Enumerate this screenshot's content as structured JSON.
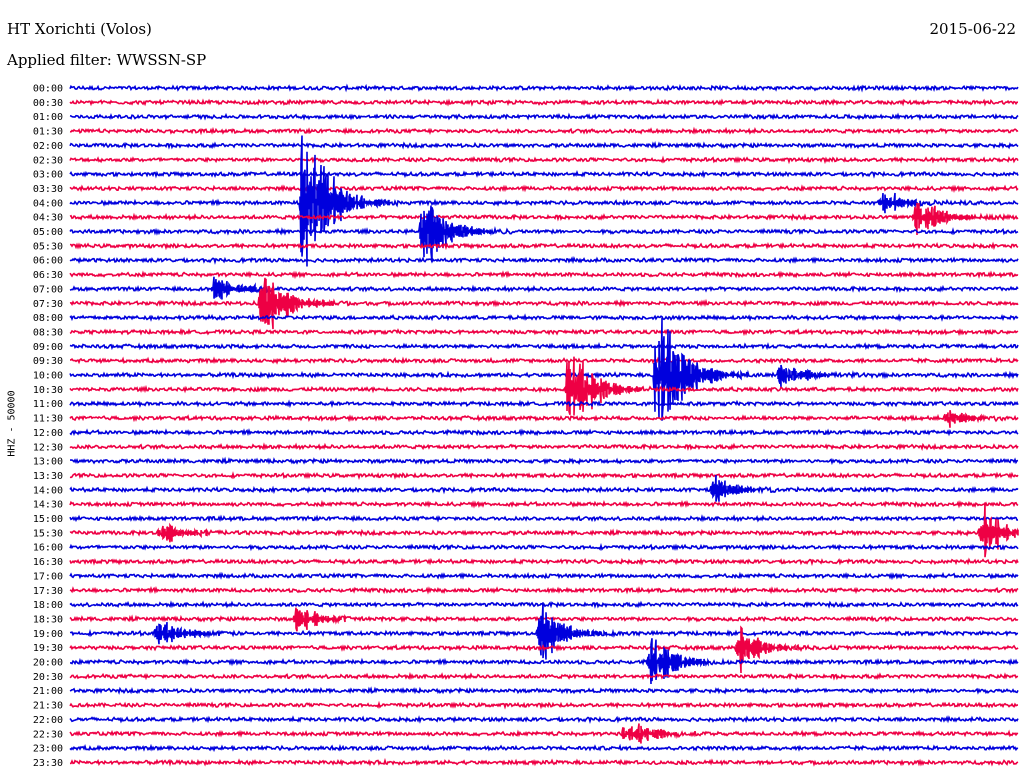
{
  "header": {
    "station": "HT Xorichti (Volos)",
    "filter": "Applied filter: WWSSN-SP",
    "date": "2015-06-22"
  },
  "chart_data": {
    "type": "line",
    "title": "HT Xorichti (Volos)",
    "ylabel": "HHZ - 50000",
    "colors": {
      "even": "#0000dd",
      "odd": "#ee0044"
    },
    "rows": [
      "00:00",
      "00:30",
      "01:00",
      "01:30",
      "02:00",
      "02:30",
      "03:00",
      "03:30",
      "04:00",
      "04:30",
      "05:00",
      "05:30",
      "06:00",
      "06:30",
      "07:00",
      "07:30",
      "08:00",
      "08:30",
      "09:00",
      "09:30",
      "10:00",
      "10:30",
      "11:00",
      "11:30",
      "12:00",
      "12:30",
      "13:00",
      "13:30",
      "14:00",
      "14:30",
      "15:00",
      "15:30",
      "16:00",
      "16:30",
      "17:00",
      "17:30",
      "18:00",
      "18:30",
      "19:00",
      "19:30",
      "20:00",
      "20:30",
      "21:00",
      "21:30",
      "22:00",
      "22:30",
      "23:00",
      "23:30"
    ],
    "time_span_minutes": 30,
    "events": [
      {
        "row": 8,
        "minute": 7.4,
        "amplitude": 1.0
      },
      {
        "row": 10,
        "minute": 11.2,
        "amplitude": 0.45
      },
      {
        "row": 14,
        "minute": 4.6,
        "amplitude": 0.12
      },
      {
        "row": 15,
        "minute": 6.1,
        "amplitude": 0.35
      },
      {
        "row": 20,
        "minute": 18.6,
        "amplitude": 0.9
      },
      {
        "row": 21,
        "minute": 15.8,
        "amplitude": 0.45
      },
      {
        "row": 20,
        "minute": 22.5,
        "amplitude": 0.12
      },
      {
        "row": 23,
        "minute": 27.8,
        "amplitude": 0.08
      },
      {
        "row": 8,
        "minute": 25.7,
        "amplitude": 0.12
      },
      {
        "row": 9,
        "minute": 26.8,
        "amplitude": 0.2
      },
      {
        "row": 28,
        "minute": 20.4,
        "amplitude": 0.12
      },
      {
        "row": 31,
        "minute": 2.9,
        "amplitude": 0.1
      },
      {
        "row": 31,
        "minute": 28.9,
        "amplitude": 0.25
      },
      {
        "row": 37,
        "minute": 7.2,
        "amplitude": 0.12
      },
      {
        "row": 38,
        "minute": 2.8,
        "amplitude": 0.12
      },
      {
        "row": 38,
        "minute": 14.9,
        "amplitude": 0.3
      },
      {
        "row": 39,
        "minute": 21.2,
        "amplitude": 0.2
      },
      {
        "row": 40,
        "minute": 18.4,
        "amplitude": 0.25
      },
      {
        "row": 45,
        "minute": 17.6,
        "amplitude": 0.15
      }
    ]
  }
}
